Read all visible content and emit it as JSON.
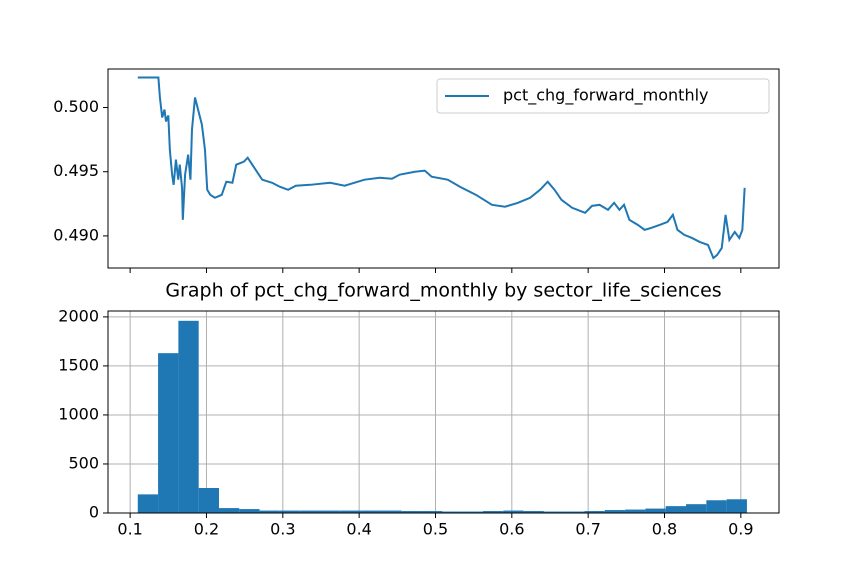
{
  "chart_data": [
    {
      "type": "line",
      "legend": "upper right",
      "xlim": [
        0.071,
        0.95
      ],
      "ylim": [
        0.4875,
        0.503
      ],
      "xticks": [
        0.1,
        0.2,
        0.3,
        0.4,
        0.5,
        0.6,
        0.7,
        0.8,
        0.9
      ],
      "xtick_labels": false,
      "yticks": [
        {
          "value": 0.49,
          "label": "0.490"
        },
        {
          "value": 0.495,
          "label": "0.495"
        },
        {
          "value": 0.5,
          "label": "0.500"
        }
      ],
      "grid": false,
      "x": [
        0.11,
        0.137,
        0.139,
        0.142,
        0.145,
        0.147,
        0.15,
        0.152,
        0.155,
        0.157,
        0.16,
        0.163,
        0.165,
        0.168,
        0.169,
        0.172,
        0.176,
        0.179,
        0.181,
        0.185,
        0.189,
        0.194,
        0.198,
        0.201,
        0.205,
        0.211,
        0.22,
        0.226,
        0.234,
        0.239,
        0.249,
        0.254,
        0.26,
        0.273,
        0.286,
        0.296,
        0.307,
        0.317,
        0.336,
        0.362,
        0.381,
        0.407,
        0.427,
        0.443,
        0.453,
        0.473,
        0.486,
        0.495,
        0.516,
        0.532,
        0.553,
        0.574,
        0.591,
        0.608,
        0.624,
        0.637,
        0.647,
        0.656,
        0.665,
        0.679,
        0.696,
        0.705,
        0.715,
        0.726,
        0.734,
        0.741,
        0.747,
        0.754,
        0.765,
        0.774,
        0.783,
        0.794,
        0.804,
        0.811,
        0.817,
        0.826,
        0.836,
        0.846,
        0.857,
        0.864,
        0.869,
        0.875,
        0.88,
        0.885,
        0.892,
        0.898,
        0.902,
        0.905
      ],
      "series": [
        {
          "name": "pct_chg_forward_monthly",
          "color": "#1f77b4",
          "values": [
            0.50234,
            0.50234,
            0.50078,
            0.49922,
            0.49984,
            0.49891,
            0.49938,
            0.49672,
            0.49477,
            0.49398,
            0.49594,
            0.49438,
            0.49555,
            0.49375,
            0.49125,
            0.49477,
            0.49633,
            0.49438,
            0.49828,
            0.50078,
            0.49984,
            0.49867,
            0.49672,
            0.49359,
            0.4932,
            0.49297,
            0.4932,
            0.49422,
            0.49414,
            0.49555,
            0.49578,
            0.49609,
            0.49555,
            0.49438,
            0.49414,
            0.49383,
            0.49359,
            0.49391,
            0.49398,
            0.49414,
            0.49391,
            0.49438,
            0.49453,
            0.49445,
            0.49477,
            0.495,
            0.49508,
            0.49461,
            0.49438,
            0.49383,
            0.4932,
            0.49242,
            0.49227,
            0.49258,
            0.49297,
            0.49359,
            0.49422,
            0.49359,
            0.49281,
            0.49219,
            0.4918,
            0.49234,
            0.49242,
            0.49203,
            0.49258,
            0.49203,
            0.49242,
            0.49125,
            0.49086,
            0.49047,
            0.49063,
            0.49086,
            0.49109,
            0.49164,
            0.49047,
            0.49008,
            0.48984,
            0.48953,
            0.4893,
            0.48828,
            0.48852,
            0.48906,
            0.49164,
            0.48969,
            0.49031,
            0.48984,
            0.49047,
            0.49375
          ]
        }
      ]
    },
    {
      "type": "histogram",
      "title": "Graph of pct_chg_forward_monthly by sector_life_sciences",
      "xlim": [
        0.071,
        0.95
      ],
      "ylim": [
        0,
        2060
      ],
      "xticks": [
        0.1,
        0.2,
        0.3,
        0.4,
        0.5,
        0.6,
        0.7,
        0.8,
        0.9
      ],
      "yticks": [
        0,
        500,
        1000,
        1500,
        2000
      ],
      "grid": true,
      "color": "#1f77b4",
      "bins": [
        0.11,
        0.1366,
        0.1632,
        0.1898,
        0.2164,
        0.243,
        0.2696,
        0.2962,
        0.3228,
        0.3494,
        0.376,
        0.4026,
        0.4292,
        0.4558,
        0.4824,
        0.509,
        0.5356,
        0.5622,
        0.5888,
        0.6154,
        0.642,
        0.6686,
        0.6952,
        0.7218,
        0.7484,
        0.775,
        0.8016,
        0.8282,
        0.8548,
        0.8814,
        0.908
      ],
      "values": [
        190,
        1630,
        1960,
        255,
        50,
        40,
        25,
        25,
        25,
        25,
        25,
        25,
        25,
        20,
        20,
        15,
        15,
        20,
        25,
        20,
        15,
        15,
        20,
        30,
        35,
        45,
        70,
        90,
        130,
        140
      ]
    }
  ]
}
